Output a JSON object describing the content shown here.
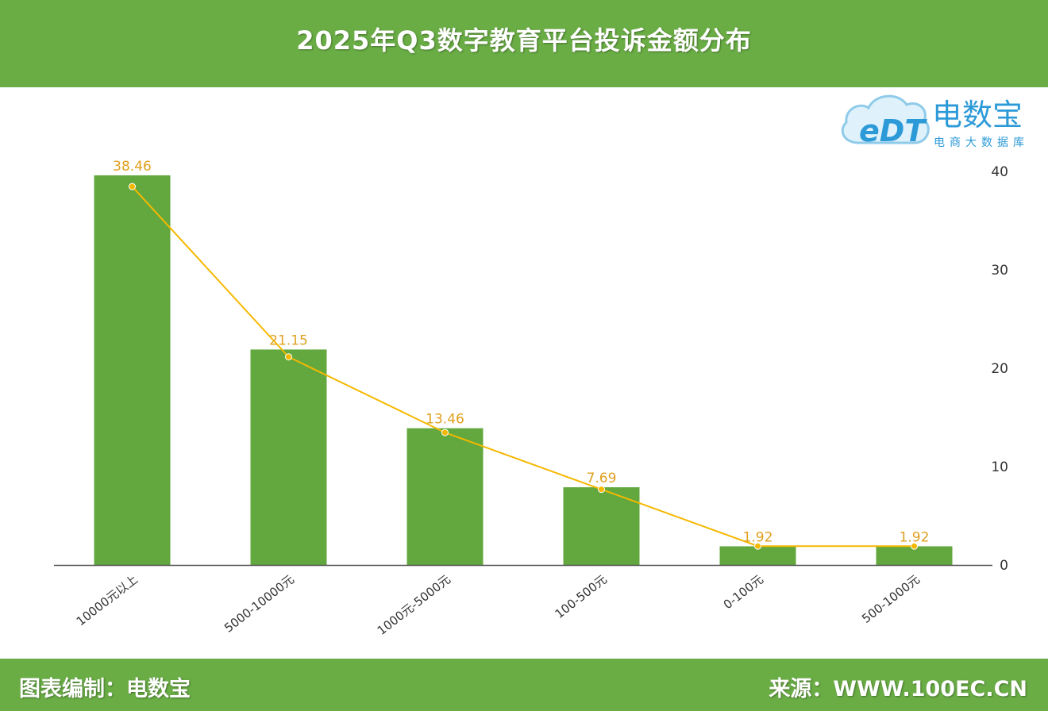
{
  "header": {
    "title": "2025年Q3数字教育平台投诉金额分布"
  },
  "footer": {
    "credit": "图表编制：电数宝",
    "source": "来源：WWW.100EC.CN"
  },
  "logo": {
    "mark": "eDT",
    "name": "电数宝",
    "tagline": "电商大数据库",
    "color": "#2d9ad8"
  },
  "colors": {
    "header_bg": "#6aad45",
    "bar": "#62a83e",
    "line": "#f5b800",
    "label": "#e0a020"
  },
  "chart_data": {
    "type": "bar",
    "categories": [
      "10000元以上",
      "5000-10000元",
      "1000元-5000元",
      "100-500元",
      "0-100元",
      "500-1000元"
    ],
    "series": [
      {
        "type": "bar",
        "values": [
          39.6,
          21.9,
          13.9,
          7.9,
          1.9,
          1.9
        ]
      },
      {
        "type": "line",
        "values": [
          38.46,
          21.15,
          13.46,
          7.69,
          1.92,
          1.92
        ],
        "labels": [
          "38.46",
          "21.15",
          "13.46",
          "7.69",
          "1.92",
          "1.92"
        ]
      }
    ],
    "y_ticks": [
      "40",
      "30",
      "20",
      "10",
      "0"
    ],
    "ylim": [
      0,
      40
    ],
    "y_axis_position": "right",
    "grid": false,
    "legend": "none"
  }
}
